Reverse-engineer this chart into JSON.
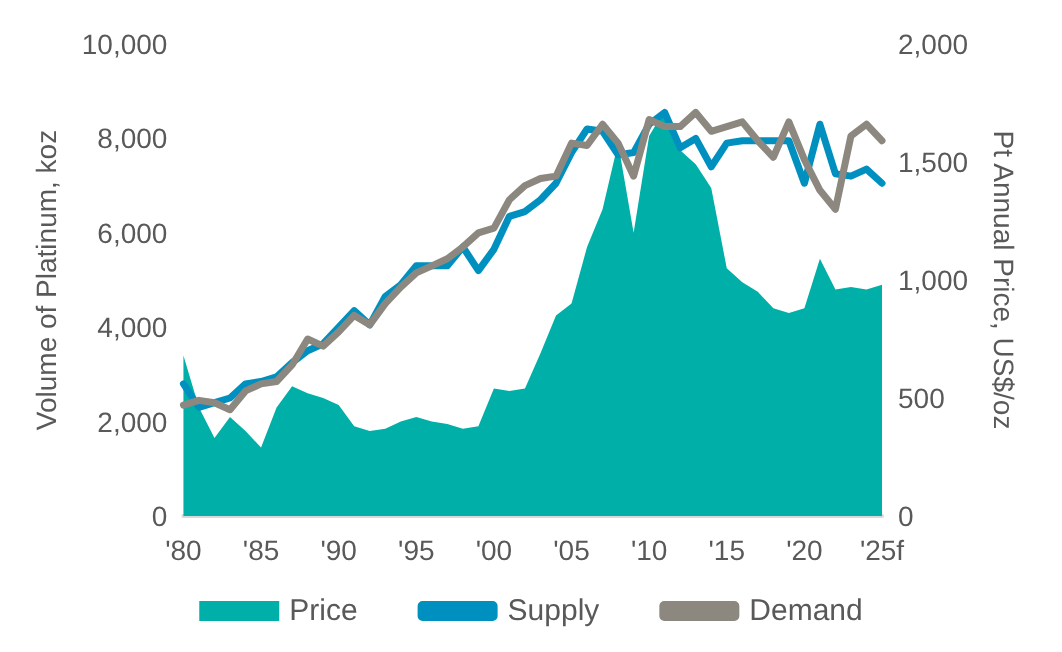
{
  "chart_data": {
    "type": "line",
    "ylabel": "Volume of Platinum, koz",
    "y2label": "Pt Annual Price, US$/oz",
    "categories": [
      "'80",
      null,
      null,
      null,
      null,
      "'85",
      null,
      null,
      null,
      null,
      "'90",
      null,
      null,
      null,
      null,
      "'95",
      null,
      null,
      null,
      null,
      "'00",
      null,
      null,
      null,
      null,
      "'05",
      null,
      null,
      null,
      null,
      "'10",
      null,
      null,
      null,
      null,
      "'15",
      null,
      null,
      null,
      null,
      "'20",
      null,
      null,
      null,
      null,
      "'25f"
    ],
    "series": [
      {
        "name": "Price",
        "type": "area",
        "axis": "y2",
        "color": "#00b0a8",
        "values": [
          680,
          460,
          330,
          420,
          360,
          290,
          460,
          550,
          520,
          500,
          470,
          380,
          360,
          370,
          400,
          420,
          400,
          390,
          370,
          380,
          540,
          530,
          540,
          690,
          850,
          900,
          1140,
          1300,
          1580,
          1200,
          1610,
          1720,
          1550,
          1490,
          1390,
          1050,
          990,
          950,
          880,
          860,
          880,
          1090,
          960,
          970,
          960,
          980
        ]
      },
      {
        "name": "Supply",
        "color": "#0090c0",
        "values": [
          2800,
          2300,
          2400,
          2500,
          2800,
          2850,
          2950,
          3250,
          3500,
          3650,
          4000,
          4350,
          4050,
          4650,
          4900,
          5300,
          5300,
          5300,
          5700,
          5200,
          5650,
          6350,
          6450,
          6700,
          7050,
          7700,
          8200,
          8150,
          7650,
          7700,
          8300,
          8550,
          7800,
          8000,
          7400,
          7900,
          7950,
          7950,
          7950,
          7950,
          7050,
          8300,
          7250,
          7200,
          7350,
          7050
        ]
      },
      {
        "name": "Demand",
        "color": "#8c8880",
        "values": [
          2350,
          2450,
          2400,
          2250,
          2650,
          2800,
          2850,
          3200,
          3750,
          3600,
          3900,
          4250,
          4050,
          4500,
          4850,
          5150,
          5300,
          5450,
          5700,
          6000,
          6100,
          6700,
          7000,
          7150,
          7200,
          7900,
          7850,
          8300,
          7900,
          7200,
          8400,
          8250,
          8250,
          8550,
          8150,
          8250,
          8350,
          7950,
          7600,
          8350,
          7550,
          6900,
          6500,
          8050,
          8300,
          7950
        ]
      }
    ],
    "ylim": [
      0,
      10000
    ],
    "yticks": [
      0,
      {
        "value": 2000,
        "label": "2,000"
      },
      {
        "value": 4000,
        "label": "4,000"
      },
      {
        "value": 6000,
        "label": "6,000"
      },
      {
        "value": 8000,
        "label": "8,000"
      },
      {
        "value": 10000,
        "label": "10,000"
      }
    ],
    "y2lim": [
      0,
      2000
    ],
    "y2ticks": [
      0,
      500,
      {
        "value": 1000,
        "label": "1,000"
      },
      {
        "value": 1500,
        "label": "1,500"
      },
      {
        "value": 2000,
        "label": "2,000"
      }
    ],
    "grid": false,
    "legend": "bottom",
    "marker": "none",
    "line_style": "solid"
  }
}
